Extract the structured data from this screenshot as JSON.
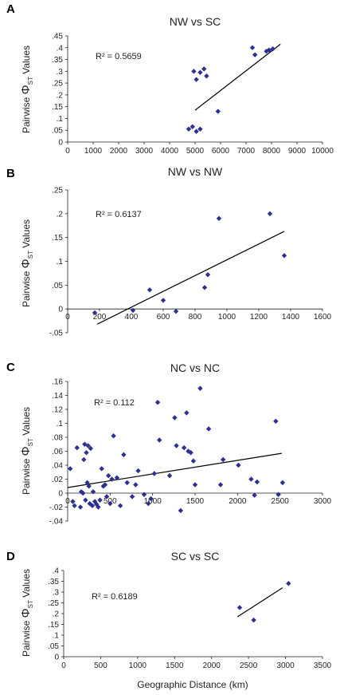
{
  "y_label": {
    "word1": "Pairwise",
    "symbol": "Φ",
    "sub": "ST",
    "word2": "Values"
  },
  "x_label": "Geographic Distance (km)",
  "chart_data": [
    {
      "letter": "A",
      "type": "scatter",
      "title": "NW vs SC",
      "r2": "R² = 0.5659",
      "xlim": [
        0,
        10000
      ],
      "ylim": [
        0,
        0.45
      ],
      "xticks": [
        0,
        1000,
        2000,
        3000,
        4000,
        5000,
        6000,
        7000,
        8000,
        9000,
        10000
      ],
      "yticks": [
        0,
        0.05,
        0.1,
        0.15,
        0.2,
        0.25,
        0.3,
        0.35,
        0.4,
        0.45
      ],
      "x_axis_at": 0,
      "points": [
        [
          4950,
          0.3
        ],
        [
          5050,
          0.265
        ],
        [
          5200,
          0.295
        ],
        [
          5350,
          0.31
        ],
        [
          5450,
          0.28
        ],
        [
          5900,
          0.13
        ],
        [
          4750,
          0.055
        ],
        [
          4900,
          0.065
        ],
        [
          5050,
          0.045
        ],
        [
          5200,
          0.055
        ],
        [
          7250,
          0.4
        ],
        [
          7350,
          0.37
        ],
        [
          7800,
          0.385
        ],
        [
          7900,
          0.39
        ],
        [
          8050,
          0.395
        ]
      ],
      "trend": [
        [
          5000,
          0.135
        ],
        [
          8350,
          0.415
        ]
      ]
    },
    {
      "letter": "B",
      "type": "scatter",
      "title": "NW vs NW",
      "r2": "R² = 0.6137",
      "xlim": [
        0,
        1600
      ],
      "ylim": [
        -0.05,
        0.25
      ],
      "xticks": [
        0,
        200,
        400,
        600,
        800,
        1000,
        1200,
        1400,
        1600
      ],
      "yticks": [
        -0.05,
        0,
        0.05,
        0.1,
        0.15,
        0.2,
        0.25
      ],
      "x_axis_at": 0,
      "points": [
        [
          170,
          -0.008
        ],
        [
          410,
          -0.003
        ],
        [
          515,
          0.04
        ],
        [
          600,
          0.018
        ],
        [
          680,
          -0.005
        ],
        [
          860,
          0.045
        ],
        [
          880,
          0.072
        ],
        [
          950,
          0.19
        ],
        [
          1270,
          0.2
        ],
        [
          1360,
          0.112
        ]
      ],
      "trend": [
        [
          185,
          -0.032
        ],
        [
          1360,
          0.163
        ]
      ]
    },
    {
      "letter": "C",
      "type": "scatter",
      "title": "NC vs NC",
      "r2": "R² = 0.112",
      "xlim": [
        0,
        3000
      ],
      "ylim": [
        -0.04,
        0.16
      ],
      "xticks": [
        0,
        500,
        1000,
        1500,
        2000,
        2500,
        3000
      ],
      "yticks": [
        -0.04,
        -0.02,
        0,
        0.02,
        0.04,
        0.06,
        0.08,
        0.1,
        0.12,
        0.14,
        0.16
      ],
      "x_axis_at": 0,
      "points": [
        [
          30,
          0.035
        ],
        [
          60,
          -0.012
        ],
        [
          80,
          -0.018
        ],
        [
          110,
          0.065
        ],
        [
          150,
          -0.02
        ],
        [
          160,
          0.002
        ],
        [
          180,
          0.0
        ],
        [
          190,
          0.048
        ],
        [
          200,
          0.07
        ],
        [
          210,
          -0.01
        ],
        [
          220,
          0.058
        ],
        [
          240,
          0.068
        ],
        [
          230,
          0.015
        ],
        [
          250,
          0.01
        ],
        [
          260,
          -0.015
        ],
        [
          270,
          0.064
        ],
        [
          290,
          -0.018
        ],
        [
          300,
          0.002
        ],
        [
          320,
          -0.012
        ],
        [
          340,
          -0.016
        ],
        [
          360,
          -0.02
        ],
        [
          380,
          -0.01
        ],
        [
          400,
          0.035
        ],
        [
          420,
          0.01
        ],
        [
          440,
          0.012
        ],
        [
          460,
          -0.005
        ],
        [
          480,
          0.025
        ],
        [
          500,
          -0.015
        ],
        [
          520,
          0.02
        ],
        [
          540,
          0.082
        ],
        [
          580,
          0.022
        ],
        [
          620,
          -0.018
        ],
        [
          660,
          0.055
        ],
        [
          700,
          0.015
        ],
        [
          760,
          -0.005
        ],
        [
          800,
          0.012
        ],
        [
          830,
          0.032
        ],
        [
          900,
          -0.002
        ],
        [
          950,
          -0.015
        ],
        [
          980,
          -0.008
        ],
        [
          1020,
          0.028
        ],
        [
          1060,
          0.13
        ],
        [
          1080,
          0.076
        ],
        [
          1200,
          0.025
        ],
        [
          1260,
          0.108
        ],
        [
          1280,
          0.068
        ],
        [
          1330,
          -0.025
        ],
        [
          1370,
          0.065
        ],
        [
          1400,
          0.115
        ],
        [
          1420,
          0.06
        ],
        [
          1450,
          0.058
        ],
        [
          1480,
          0.046
        ],
        [
          1500,
          0.012
        ],
        [
          1560,
          0.15
        ],
        [
          1660,
          0.092
        ],
        [
          1800,
          0.012
        ],
        [
          1830,
          0.048
        ],
        [
          2010,
          0.04
        ],
        [
          2160,
          0.02
        ],
        [
          2200,
          -0.003
        ],
        [
          2230,
          0.016
        ],
        [
          2450,
          0.103
        ],
        [
          2480,
          -0.002
        ],
        [
          2530,
          0.015
        ]
      ],
      "trend": [
        [
          0,
          0.008
        ],
        [
          2520,
          0.057
        ]
      ]
    },
    {
      "letter": "D",
      "type": "scatter",
      "title": "SC vs SC",
      "r2": "R² = 0.6189",
      "xlim": [
        0,
        3500
      ],
      "ylim": [
        0,
        0.4
      ],
      "xticks": [
        0,
        500,
        1000,
        1500,
        2000,
        2500,
        3000,
        3500
      ],
      "yticks": [
        0,
        0.05,
        0.1,
        0.15,
        0.2,
        0.25,
        0.3,
        0.35,
        0.4
      ],
      "x_axis_at": 0,
      "points": [
        [
          2380,
          0.228
        ],
        [
          2570,
          0.17
        ],
        [
          3040,
          0.34
        ]
      ],
      "trend": [
        [
          2350,
          0.185
        ],
        [
          2960,
          0.32
        ]
      ]
    }
  ]
}
